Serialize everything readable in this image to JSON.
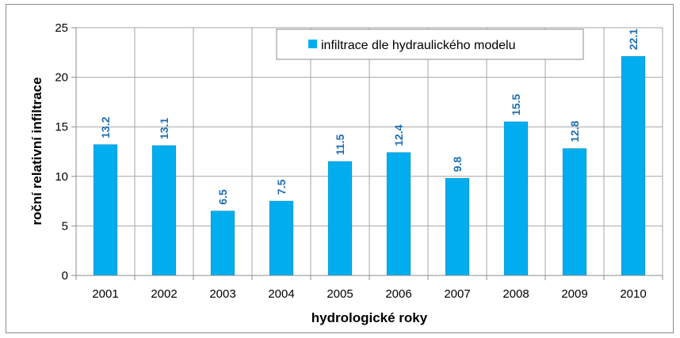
{
  "chart_data": {
    "type": "bar",
    "categories": [
      "2001",
      "2002",
      "2003",
      "2004",
      "2005",
      "2006",
      "2007",
      "2008",
      "2009",
      "2010"
    ],
    "series": [
      {
        "name": "infiltrace dle hydraulického modelu",
        "values": [
          13.2,
          13.1,
          6.5,
          7.5,
          11.5,
          12.4,
          9.8,
          15.5,
          12.8,
          22.1
        ],
        "labels": [
          "13.2",
          "13.1",
          "6.5",
          "7.5",
          "11.5",
          "12.4",
          "9.8",
          "15.5",
          "12.8",
          "22.1"
        ],
        "color": "#00aeef"
      }
    ],
    "xlabel": "hydrologické roky",
    "ylabel": "roční relativní infiltrace",
    "ylim": [
      0,
      25
    ],
    "yticks": [
      "0",
      "5",
      "10",
      "15",
      "20",
      "25"
    ],
    "grid": true,
    "legend_position": "top"
  },
  "colors": {
    "bar": "#00aeef",
    "data_label": "#1f6fb3",
    "grid": "#a6a6a6"
  }
}
